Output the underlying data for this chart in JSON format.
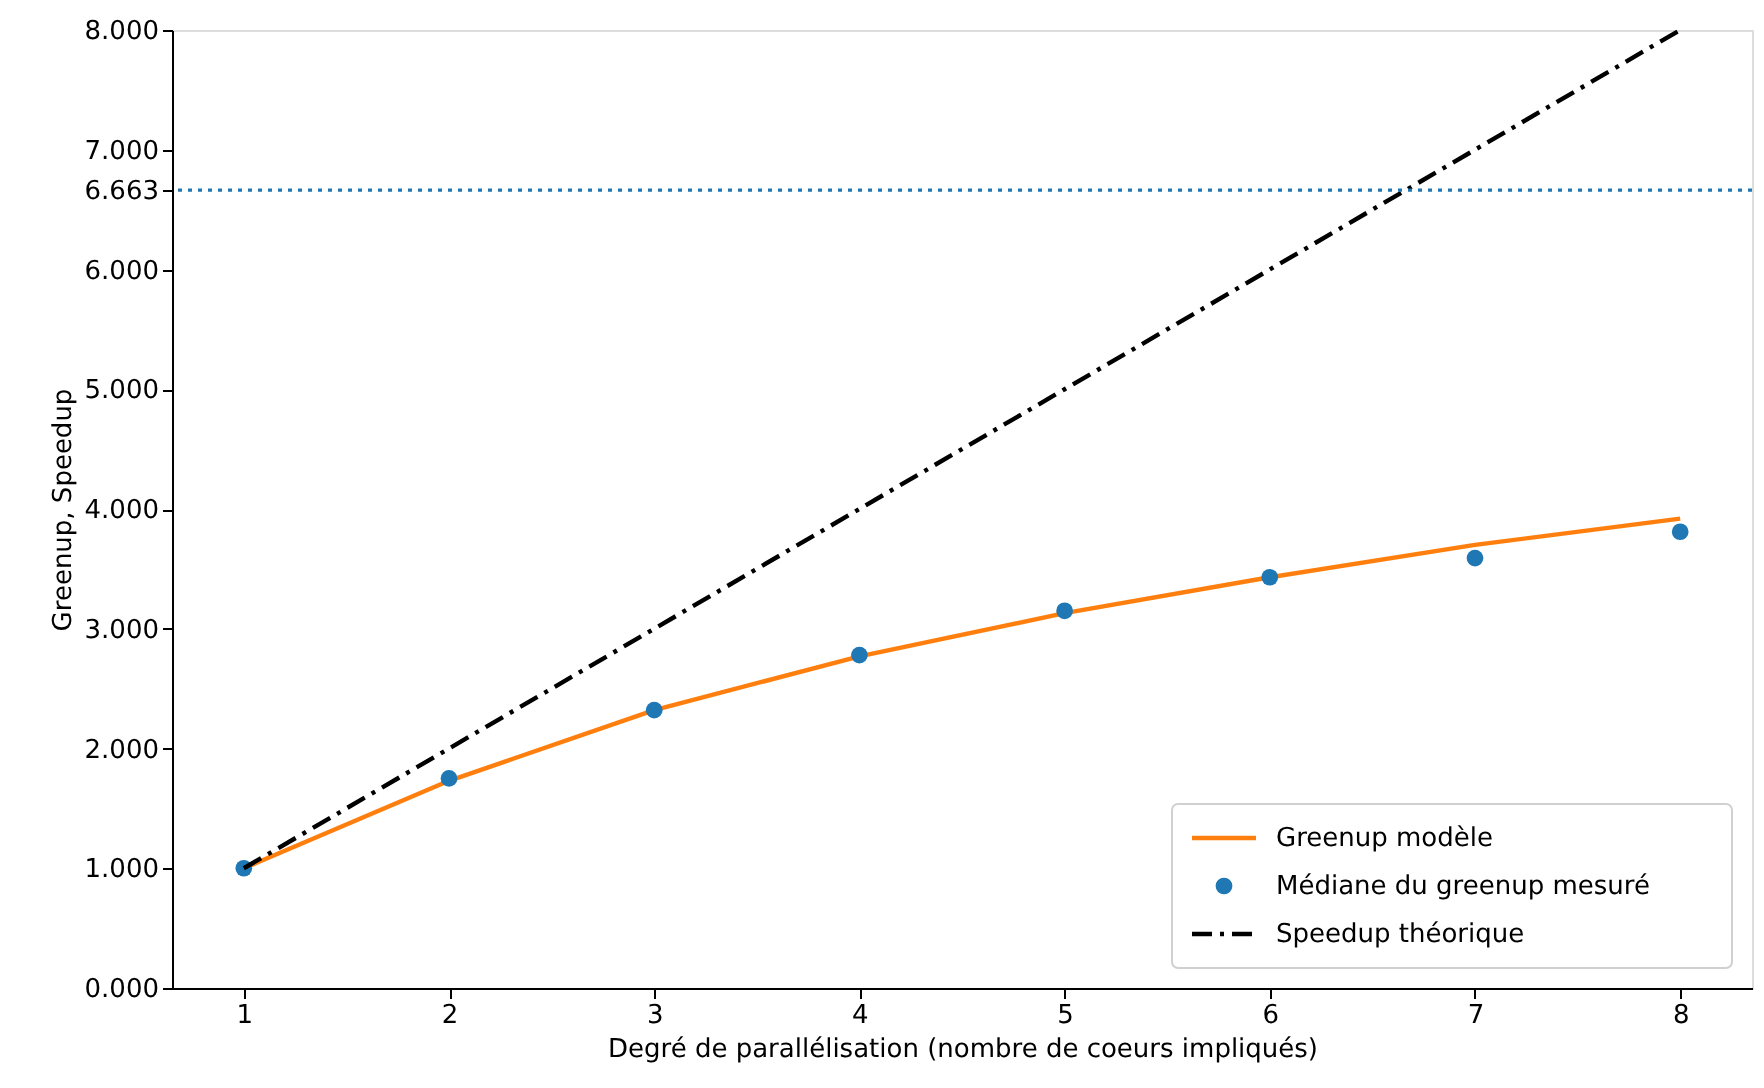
{
  "chart_data": {
    "type": "line",
    "xlabel": "Degré de parallélisation (nombre de coeurs impliqués)",
    "ylabel": "Greenup, Speedup",
    "x": [
      1,
      2,
      3,
      4,
      5,
      6,
      7,
      8
    ],
    "series": [
      {
        "name": "Greenup modèle",
        "color": "#ff7f0e",
        "line_style": "solid",
        "marker": "none",
        "values": [
          1.0,
          1.73,
          2.32,
          2.77,
          3.13,
          3.43,
          3.7,
          3.92
        ]
      },
      {
        "name": "Médiane du greenup mesuré",
        "type": "scatter",
        "color": "#1f77b4",
        "marker": "circle",
        "values": [
          1.0,
          1.75,
          2.32,
          2.78,
          3.15,
          3.43,
          3.59,
          3.81
        ]
      },
      {
        "name": "Speedup théorique",
        "type": "line",
        "color": "#000000",
        "line_style": "dashdot",
        "marker": "none",
        "values": [
          1,
          2,
          3,
          4,
          5,
          6,
          7,
          8
        ]
      }
    ],
    "xlim": [
      0.65,
      8.35
    ],
    "xticks": [
      1,
      2,
      3,
      4,
      5,
      6,
      7,
      8
    ],
    "ylim": [
      0,
      8
    ],
    "yticks": [
      {
        "value": 0,
        "label": "0.000"
      },
      {
        "value": 1,
        "label": "1.000"
      },
      {
        "value": 2,
        "label": "2.000"
      },
      {
        "value": 3,
        "label": "3.000"
      },
      {
        "value": 4,
        "label": "4.000"
      },
      {
        "value": 5,
        "label": "5.000"
      },
      {
        "value": 6,
        "label": "6.000"
      },
      {
        "value": 6.663,
        "label": "6.663"
      },
      {
        "value": 7,
        "label": "7.000"
      },
      {
        "value": 8,
        "label": "8.000"
      }
    ],
    "ref_lines": [
      {
        "axis": "y",
        "value": 6.663,
        "color": "#1f77b4",
        "line_style": "dotted"
      }
    ],
    "grid": false,
    "legend": "bottom right"
  }
}
